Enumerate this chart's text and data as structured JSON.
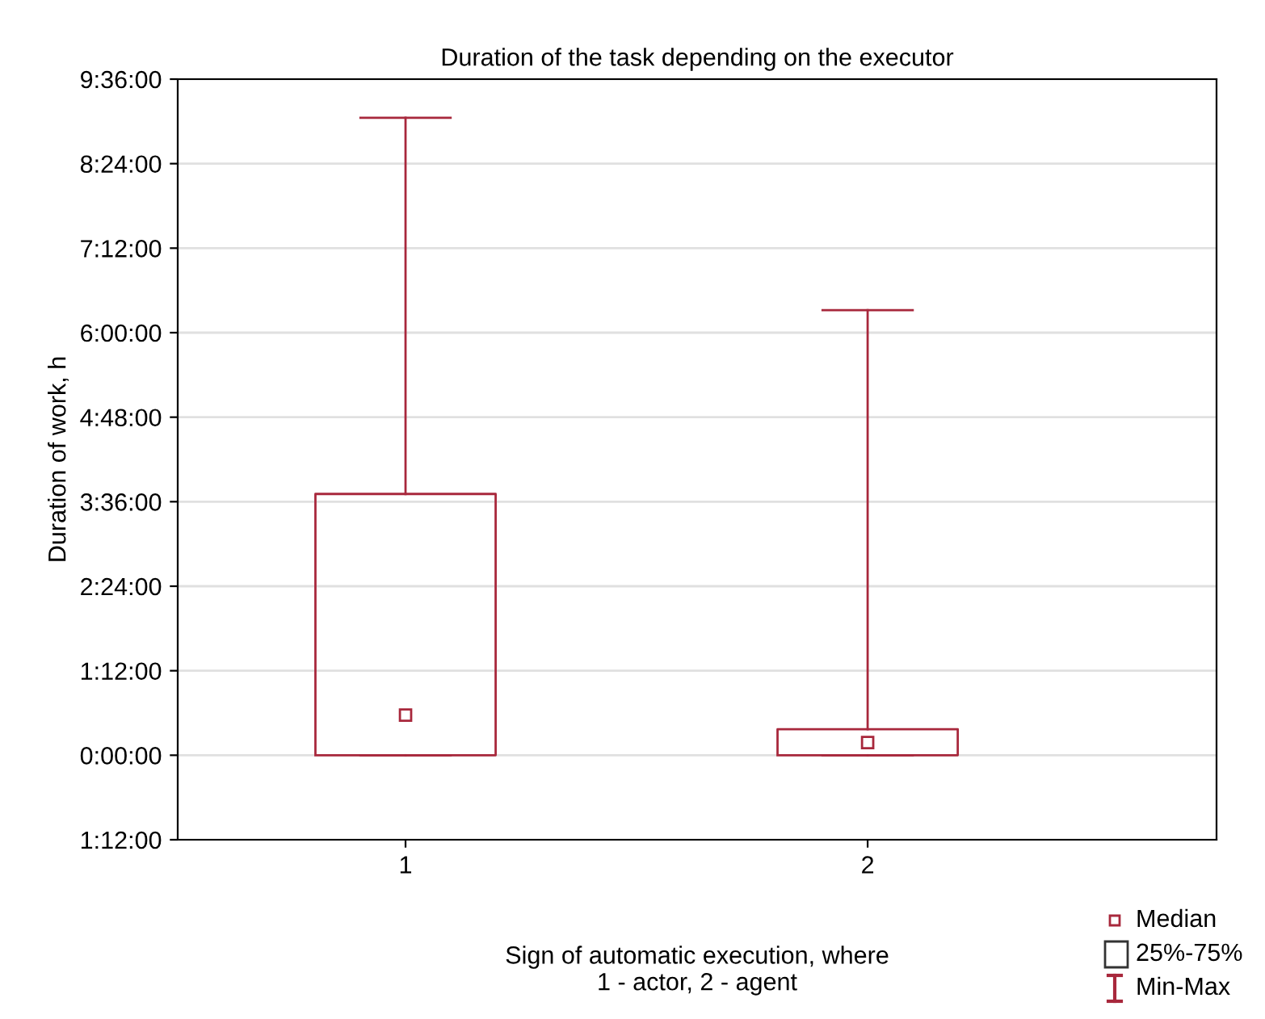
{
  "chart_data": {
    "type": "box",
    "title": "Duration of the task depending on the executor",
    "xlabel": "Sign of automatic execution, where\n1 - actor, 2 - agent",
    "ylabel": "Duration of work, h",
    "categories": [
      "1",
      "2"
    ],
    "boxes": [
      {
        "low": 0,
        "q1": 0,
        "median": 0.57,
        "q3": 3.71,
        "high": 9.05
      },
      {
        "low": 0,
        "q1": 0,
        "median": 0.18,
        "q3": 0.37,
        "high": 6.32
      }
    ],
    "color": "#a8283c",
    "ylim": [
      -1.2,
      9.6
    ],
    "yticks": [
      {
        "value": -1.2,
        "label": "1:12:00"
      },
      {
        "value": 0,
        "label": "0:00:00"
      },
      {
        "value": 1.2,
        "label": "1:12:00"
      },
      {
        "value": 2.4,
        "label": "2:24:00"
      },
      {
        "value": 3.6,
        "label": "3:36:00"
      },
      {
        "value": 4.8,
        "label": "4:48:00"
      },
      {
        "value": 6,
        "label": "6:00:00"
      },
      {
        "value": 7.2,
        "label": "7:12:00"
      },
      {
        "value": 8.4,
        "label": "8:24:00"
      },
      {
        "value": 9.6,
        "label": "9:36:00"
      }
    ],
    "grid": "y",
    "marker": "square",
    "annotations": [
      "Median",
      "25%-75%",
      "Min-Max"
    ]
  }
}
